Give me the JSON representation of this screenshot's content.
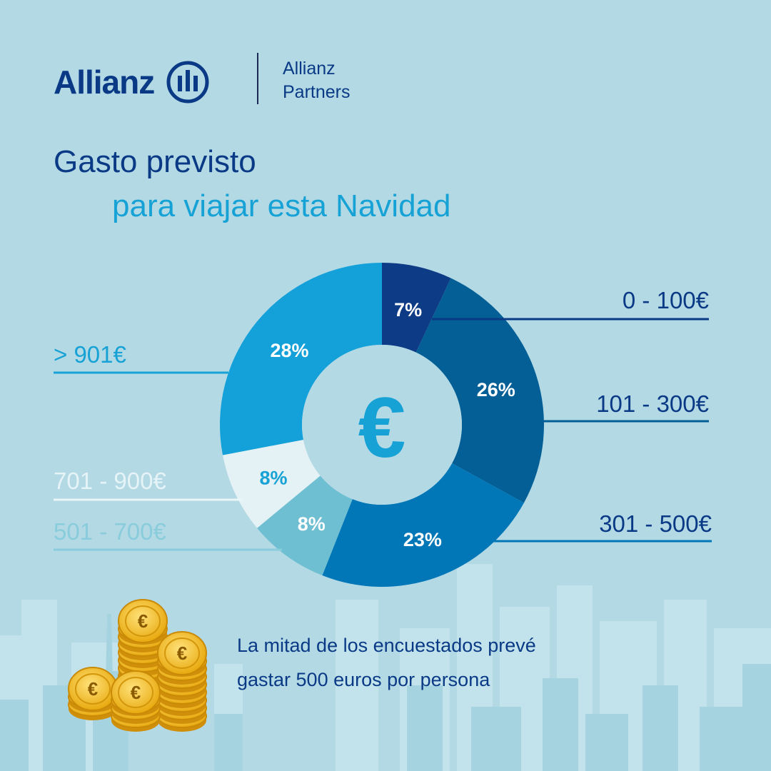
{
  "brand": {
    "name": "Allianz",
    "partners_line1": "Allianz",
    "partners_line2": "Partners"
  },
  "title": {
    "line1": "Gasto previsto",
    "line2": "para viajar esta Navidad"
  },
  "center_symbol": "€",
  "colors": {
    "background": "#b3d9e5",
    "navy": "#0a3a85",
    "accent": "#17a2d6"
  },
  "chart_data": {
    "type": "pie",
    "style": "donut",
    "slices": [
      {
        "label": "0 - 100€",
        "value": 7,
        "display": "7%",
        "color": "#0e3b86"
      },
      {
        "label": "101 - 300€",
        "value": 26,
        "display": "26%",
        "color": "#035f95"
      },
      {
        "label": "301 - 500€",
        "value": 23,
        "display": "23%",
        "color": "#0277b8"
      },
      {
        "label": "501 - 700€",
        "value": 8,
        "display": "8%",
        "color": "#6fbfd2"
      },
      {
        "label": "701 - 900€",
        "value": 8,
        "display": "8%",
        "color": "#e4f1f5"
      },
      {
        "label": "> 901€",
        "value": 28,
        "display": "28%",
        "color": "#14a0d8"
      }
    ]
  },
  "note": {
    "text": "La mitad de los encuestados prevé gastar 500 euros por persona"
  },
  "decor": {
    "coins": "gold-coin-stacks",
    "skyline": "city-skyline-silhouette"
  }
}
